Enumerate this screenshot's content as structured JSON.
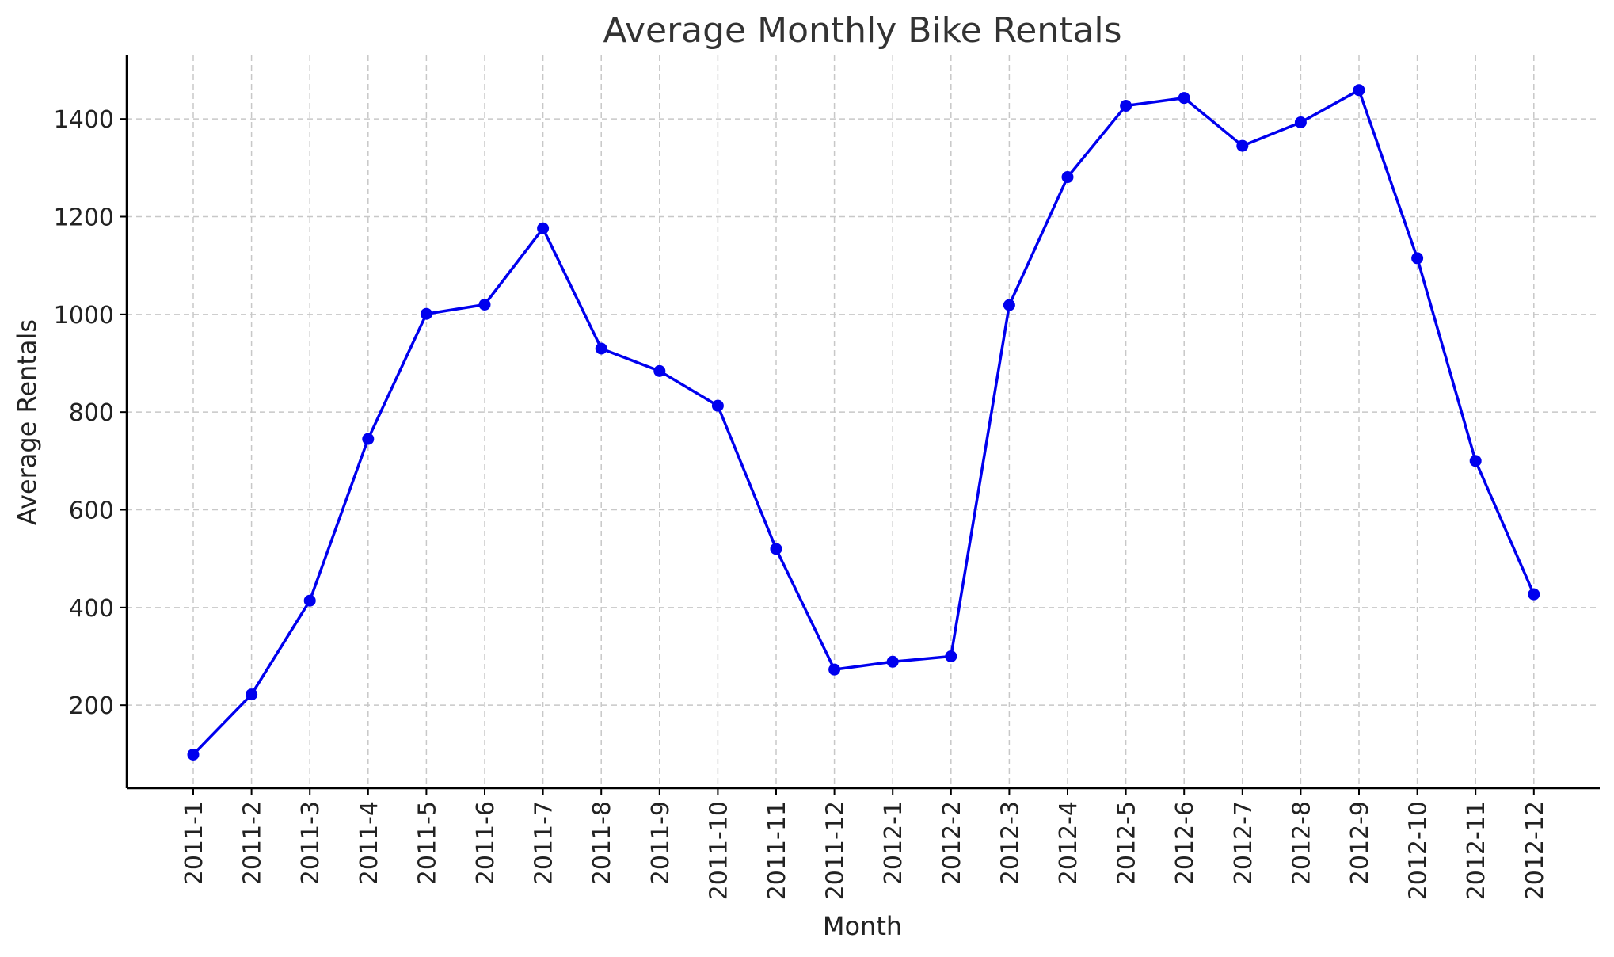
{
  "chart_data": {
    "type": "line",
    "title": "Average Monthly Bike Rentals",
    "xlabel": "Month",
    "ylabel": "Average Rentals",
    "ylim": [
      30,
      1530
    ],
    "yticks": [
      200,
      400,
      600,
      800,
      1000,
      1200,
      1400
    ],
    "grid": true,
    "categories": [
      "2011-1",
      "2011-2",
      "2011-3",
      "2011-4",
      "2011-5",
      "2011-6",
      "2011-7",
      "2011-8",
      "2011-9",
      "2011-10",
      "2011-11",
      "2011-12",
      "2012-1",
      "2012-2",
      "2012-3",
      "2012-4",
      "2012-5",
      "2012-6",
      "2012-7",
      "2012-8",
      "2012-9",
      "2012-10",
      "2012-11",
      "2012-12"
    ],
    "series": [
      {
        "name": "Average Rentals",
        "color": "#0000ee",
        "marker": "circle",
        "values": [
          99,
          222,
          414,
          745,
          1001,
          1020,
          1176,
          930,
          884,
          813,
          520,
          273,
          289,
          300,
          1019,
          1281,
          1427,
          1443,
          1345,
          1393,
          1459,
          1115,
          700,
          427
        ]
      }
    ]
  }
}
